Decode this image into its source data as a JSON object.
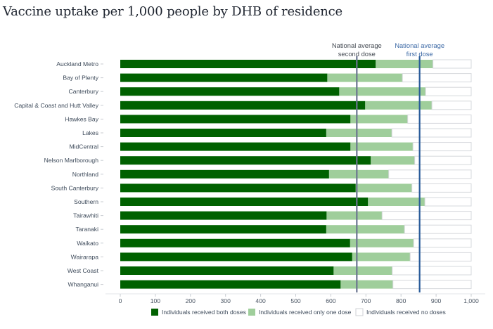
{
  "title": "Vaccine uptake per 1,000 people by DHB of residence",
  "chart_data": {
    "type": "bar",
    "orientation": "horizontal",
    "stacked": true,
    "title": "Vaccine uptake per 1,000 people by DHB of residence",
    "xlabel": "",
    "ylabel": "",
    "xlim": [
      0,
      1000
    ],
    "xticks": [
      0,
      100,
      200,
      300,
      400,
      500,
      600,
      700,
      800,
      900,
      1000
    ],
    "xtick_labels": [
      "0",
      "100",
      "200",
      "300",
      "400",
      "500",
      "600",
      "700",
      "800",
      "900",
      "1,000"
    ],
    "grid": false,
    "legend_position": "bottom",
    "categories": [
      "Auckland Metro",
      "Bay of Plenty",
      "Canterbury",
      "Capital & Coast and Hutt Valley",
      "Hawkes Bay",
      "Lakes",
      "MidCentral",
      "Nelson Marlborough",
      "Northland",
      "South Canterbury",
      "Southern",
      "Tairawhiti",
      "Taranaki",
      "Waikato",
      "Wairarapa",
      "West Coast",
      "Whanganui"
    ],
    "series": [
      {
        "name": "Individuals received both doses",
        "color": "#006100",
        "values": [
          728,
          590,
          624,
          698,
          656,
          587,
          656,
          714,
          595,
          671,
          706,
          588,
          587,
          655,
          661,
          608,
          628
        ]
      },
      {
        "name": "Individuals received only one dose",
        "color": "#9fce9b",
        "values": [
          163,
          214,
          246,
          190,
          163,
          187,
          178,
          125,
          170,
          160,
          162,
          158,
          223,
          181,
          165,
          167,
          149
        ]
      },
      {
        "name": "Individuals received no doses",
        "color": "#ffffff",
        "values": [
          109,
          196,
          130,
          112,
          181,
          226,
          166,
          161,
          235,
          169,
          132,
          254,
          190,
          164,
          174,
          225,
          223
        ]
      }
    ],
    "reference_lines": [
      {
        "label": "National average second dose",
        "line1": "National average",
        "line2": "second dose",
        "value": 674,
        "color": "#6b7590"
      },
      {
        "label": "National average first dose",
        "line1": "National average",
        "line2": "first dose",
        "value": 853,
        "color": "#2a5c9a"
      }
    ]
  }
}
